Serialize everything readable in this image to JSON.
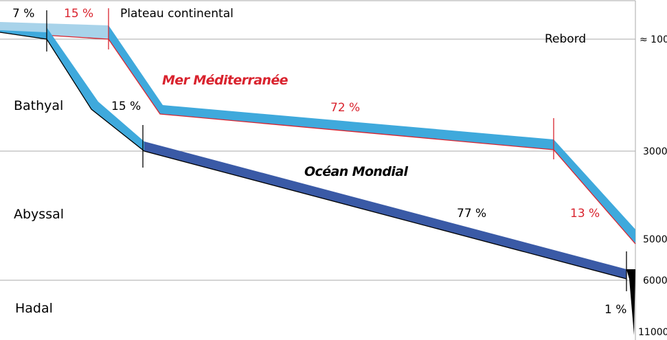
{
  "zones": {
    "bathyal": "Bathyal",
    "abyssal": "Abyssal",
    "hadal": "Hadal"
  },
  "labels": {
    "plateau": "Plateau continental",
    "rebord": "Rebord",
    "mediterranean": "Mer Méditerranée",
    "ocean": "Océan Mondial"
  },
  "percentages": {
    "ocean_shelf": "7 %",
    "med_shelf": "15 %",
    "ocean_bathyal": "15 %",
    "med_bathyal": "72 %",
    "ocean_abyssal": "77 %",
    "med_abyssal": "13 %",
    "ocean_hadal": "1 %"
  },
  "depth_ticks": {
    "d100": "≈ 100",
    "d3000": "3000",
    "d5000": "5000",
    "d6000": "6000",
    "d11000": "11000"
  },
  "colors": {
    "mediterranean": "#d9232e",
    "mediterranean_band": "#3fa9dc",
    "shelf_band": "#a8d3ea",
    "ocean_band": "#3a5aa6",
    "gridline": "#aaaaaa",
    "text": "#000000"
  }
}
